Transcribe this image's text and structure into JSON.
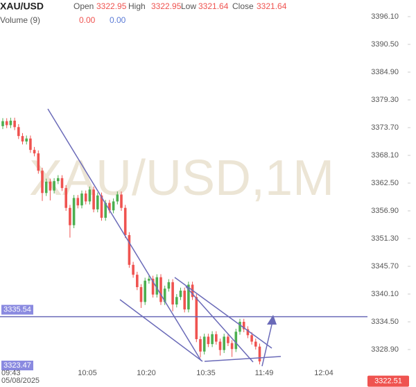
{
  "chart_data": {
    "type": "candlestick",
    "title": "XAU/USD",
    "watermark": "XAU/USD,1M",
    "header": [
      {
        "label": "Open",
        "value": "3322.95"
      },
      {
        "label": "High",
        "value": "3322.95"
      },
      {
        "label": "Low",
        "value": "3321.64"
      },
      {
        "label": "Close",
        "value": "3321.64"
      }
    ],
    "volume_label": "Volume (9)",
    "volume_values": [
      "0.00",
      "0.00"
    ],
    "x_labels": [
      "09:43",
      "10:05",
      "10:20",
      "10:35",
      "11:49",
      "12:04"
    ],
    "date_label": "05/08/2025",
    "up_color": "#4caf50",
    "down_color": "#ef5350",
    "open": [
      3374.0,
      3375.0,
      3374.2,
      3375.1,
      3373.8,
      3372.0,
      3370.9,
      3371.5,
      3369.2,
      3368.5,
      3365.0,
      3360.5,
      3362.8,
      3361.0,
      3362.9,
      3363.5,
      3361.5,
      3357.5,
      3354.0,
      3359.5,
      3358.0,
      3360.4,
      3358.8,
      3361.2,
      3357.2,
      3360.0,
      3355.5,
      3358.5,
      3357.0,
      3358.8,
      3360.2,
      3357.5,
      3352.0,
      3346.0,
      3344.0,
      3341.5,
      3338.5,
      3342.8,
      3343.2,
      3340.0,
      3343.5,
      3338.5,
      3341.2,
      3342.5,
      3338.0,
      3339.5,
      3340.8,
      3337.0,
      3342.0,
      3339.5,
      3331.0,
      3328.5,
      3331.5,
      3330.0,
      3332.0,
      3330.5,
      3328.8,
      3331.5,
      3330.2,
      3329.0,
      3332.5,
      3334.5,
      3333.0,
      3331.8,
      3330.5,
      3329.5
    ],
    "high": [
      3375.6,
      3375.6,
      3375.7,
      3375.7,
      3374.4,
      3372.6,
      3372.1,
      3372.1,
      3369.8,
      3369.1,
      3365.6,
      3363.4,
      3363.4,
      3363.5,
      3364.1,
      3364.1,
      3362.1,
      3358.1,
      3360.1,
      3360.1,
      3361.0,
      3361.0,
      3361.8,
      3361.8,
      3360.6,
      3360.6,
      3359.1,
      3359.1,
      3359.4,
      3360.8,
      3360.8,
      3358.1,
      3352.6,
      3346.6,
      3344.6,
      3342.1,
      3343.4,
      3343.8,
      3343.8,
      3344.1,
      3344.1,
      3341.8,
      3343.1,
      3343.1,
      3340.1,
      3341.4,
      3341.4,
      3342.6,
      3342.6,
      3340.1,
      3331.6,
      3332.1,
      3332.1,
      3332.6,
      3332.6,
      3331.1,
      3332.1,
      3332.1,
      3330.8,
      3333.1,
      3335.1,
      3335.1,
      3333.6,
      3332.4,
      3331.1,
      3330.1
    ],
    "low": [
      3373.4,
      3373.6,
      3373.6,
      3373.2,
      3371.4,
      3370.3,
      3370.3,
      3368.6,
      3367.9,
      3364.4,
      3358.9,
      3359.9,
      3359.0,
      3360.4,
      3362.3,
      3360.9,
      3356.9,
      3351.5,
      3353.4,
      3357.4,
      3357.4,
      3358.2,
      3358.2,
      3356.6,
      3356.6,
      3354.9,
      3354.9,
      3356.4,
      3356.4,
      3358.2,
      3356.9,
      3351.4,
      3345.4,
      3343.4,
      3340.9,
      3337.3,
      3337.9,
      3342.2,
      3339.4,
      3339.4,
      3337.9,
      3337.9,
      3340.6,
      3336.6,
      3337.4,
      3338.9,
      3336.4,
      3336.4,
      3338.9,
      3330.4,
      3327.3,
      3327.9,
      3329.4,
      3329.4,
      3329.9,
      3327.7,
      3328.2,
      3329.6,
      3327.4,
      3328.4,
      3331.9,
      3332.4,
      3331.2,
      3329.9,
      3328.9,
      3325.9
    ],
    "close": [
      3375.0,
      3374.2,
      3375.1,
      3373.8,
      3372.0,
      3370.9,
      3371.5,
      3369.2,
      3368.5,
      3365.0,
      3360.5,
      3362.8,
      3361.0,
      3362.9,
      3363.5,
      3361.5,
      3357.5,
      3354.0,
      3359.5,
      3358.0,
      3360.4,
      3358.8,
      3361.2,
      3357.2,
      3360.0,
      3355.5,
      3358.5,
      3357.0,
      3358.8,
      3360.2,
      3357.5,
      3352.0,
      3346.0,
      3344.0,
      3341.5,
      3338.5,
      3342.8,
      3343.2,
      3340.0,
      3343.5,
      3338.5,
      3341.2,
      3342.5,
      3338.0,
      3339.5,
      3340.8,
      3337.0,
      3342.0,
      3339.5,
      3331.0,
      3328.5,
      3331.5,
      3330.0,
      3332.0,
      3330.5,
      3328.8,
      3331.5,
      3330.2,
      3329.0,
      3332.5,
      3334.5,
      3333.0,
      3331.8,
      3330.5,
      3329.5,
      3326.5
    ],
    "ylim": [
      3322.46,
      3399.46
    ],
    "yticks": [
      {
        "value": 3396.1,
        "label": "3396.10"
      },
      {
        "value": 3390.5,
        "label": "3390.50"
      },
      {
        "value": 3384.9,
        "label": "3384.90"
      },
      {
        "value": 3379.3,
        "label": "3379.30"
      },
      {
        "value": 3373.7,
        "label": "3373.70"
      },
      {
        "value": 3368.1,
        "label": "3368.10"
      },
      {
        "value": 3362.5,
        "label": "3362.50"
      },
      {
        "value": 3356.9,
        "label": "3356.90"
      },
      {
        "value": 3351.3,
        "label": "3351.30"
      },
      {
        "value": 3345.7,
        "label": "3345.70"
      },
      {
        "value": 3340.1,
        "label": "3340.10"
      },
      {
        "value": 3334.5,
        "label": "3334.50"
      },
      {
        "value": 3328.9,
        "label": "3328.90"
      }
    ],
    "hline": {
      "value": 3335.54,
      "label": "3335.54",
      "color": "#6a6ab8"
    },
    "low_tag": "3323.47",
    "last_price": {
      "value": 3322.51,
      "label": "3322.51",
      "color": "#ef5350"
    }
  }
}
